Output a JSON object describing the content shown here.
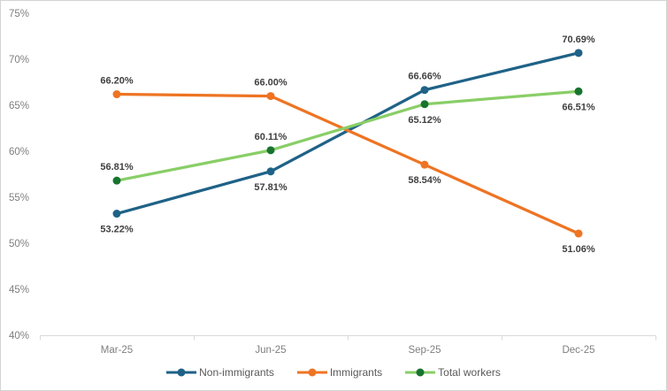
{
  "chart_data": {
    "type": "line",
    "categories": [
      "Mar-25",
      "Jun-25",
      "Sep-25",
      "Dec-25"
    ],
    "series": [
      {
        "name": "Non-immigrants",
        "values": [
          53.22,
          57.81,
          66.66,
          70.69
        ],
        "labels": [
          "53.22%",
          "57.81%",
          "66.66%",
          "70.69%"
        ],
        "label_positions": [
          "below",
          "below",
          "above",
          "above"
        ],
        "line_color": "#1f6287",
        "marker_color": "#1f6287"
      },
      {
        "name": "Immigrants",
        "values": [
          66.2,
          66.0,
          58.54,
          51.06
        ],
        "labels": [
          "66.20%",
          "66.00%",
          "58.54%",
          "51.06%"
        ],
        "label_positions": [
          "above",
          "above",
          "below",
          "below"
        ],
        "line_color": "#ee7423",
        "marker_color": "#ee7423"
      },
      {
        "name": "Total workers",
        "values": [
          56.81,
          60.11,
          65.12,
          66.51
        ],
        "labels": [
          "56.81%",
          "60.11%",
          "65.12%",
          "66.51%"
        ],
        "label_positions": [
          "above",
          "above",
          "below",
          "below"
        ],
        "line_color": "#89ce67",
        "marker_color": "#17742f"
      }
    ],
    "title": "",
    "xlabel": "",
    "ylabel": "",
    "ylim": [
      40,
      75
    ],
    "yticks": [
      75,
      70,
      65,
      60,
      55,
      50,
      45,
      40
    ],
    "ytick_labels": [
      "75%",
      "70%",
      "65%",
      "60%",
      "55%",
      "50%",
      "45%",
      "40%"
    ],
    "grid": false,
    "legend_position": "bottom-center",
    "axis_line_color": "#d9d9d9",
    "tick_label_color": "#7f7f7f",
    "data_label_color": "#404040",
    "legend_text_color": "#595959"
  }
}
